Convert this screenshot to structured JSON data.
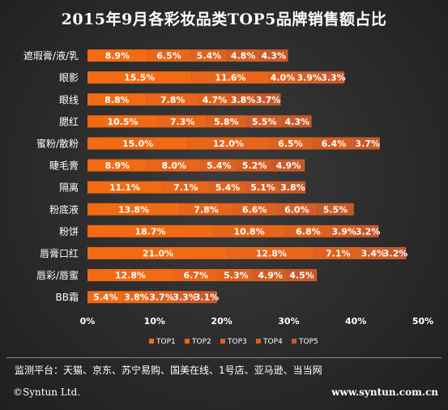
{
  "title": "2015年9月各彩妆品类TOP5品牌销售额占比",
  "source_text": "监测平台：天猫、京东、苏宁易购、国美在线、1号店、亚马逊、当当网",
  "copyright": "©Syntun Ltd.",
  "website": "www.syntun.com.cn",
  "colors": {
    "background": "#2b2b2b",
    "series": [
      "#f26a12",
      "#e8651a",
      "#dd6220",
      "#d35e25",
      "#c9592a"
    ],
    "text": "#ffffff"
  },
  "chart_data": {
    "type": "bar",
    "orientation": "horizontal",
    "stacked": true,
    "categories": [
      "遮瑕膏/液/乳",
      "眼影",
      "眼线",
      "腮红",
      "蜜粉/散粉",
      "睫毛膏",
      "隔离",
      "粉底液",
      "粉饼",
      "唇膏口红",
      "唇彩/唇蜜",
      "BB霜"
    ],
    "series": [
      {
        "name": "TOP1",
        "values": [
          8.9,
          15.5,
          8.8,
          10.5,
          15.0,
          8.9,
          11.1,
          13.8,
          18.7,
          21.0,
          12.8,
          5.4
        ]
      },
      {
        "name": "TOP2",
        "values": [
          6.5,
          11.6,
          7.8,
          7.3,
          12.0,
          8.0,
          7.1,
          7.8,
          10.8,
          12.8,
          6.7,
          3.8
        ]
      },
      {
        "name": "TOP3",
        "values": [
          5.4,
          4.0,
          4.7,
          5.8,
          6.5,
          5.4,
          5.4,
          6.6,
          6.8,
          7.1,
          5.3,
          3.7
        ]
      },
      {
        "name": "TOP4",
        "values": [
          4.8,
          3.9,
          3.8,
          5.5,
          6.4,
          5.2,
          5.1,
          6.0,
          3.9,
          3.4,
          4.9,
          3.3
        ]
      },
      {
        "name": "TOP5",
        "values": [
          4.3,
          3.3,
          3.7,
          4.3,
          3.7,
          4.9,
          3.8,
          5.5,
          3.2,
          3.2,
          4.5,
          3.1
        ]
      }
    ],
    "xlim": [
      0,
      50
    ],
    "xticks": [
      "0%",
      "10%",
      "20%",
      "30%",
      "40%",
      "50%"
    ],
    "data_label_suffix": "%",
    "legend_position": "bottom",
    "grid": false
  }
}
